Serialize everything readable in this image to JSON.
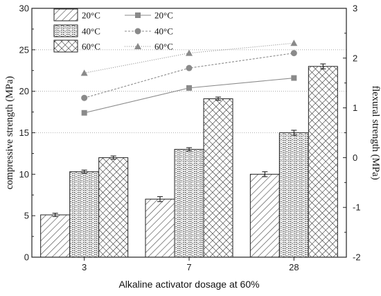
{
  "chart_data": {
    "type": "bar",
    "xlabel": "Alkaline activator dosage at 60%",
    "ylabel_left": "compressive strength (MPa)",
    "ylabel_right": "flexural strength (MPa)",
    "ylim_left": [
      0,
      30
    ],
    "ylim_right": [
      -2,
      3
    ],
    "left_ticks": [
      0,
      5,
      10,
      15,
      20,
      25,
      30
    ],
    "right_ticks": [
      -2,
      -1,
      0,
      1,
      2,
      3
    ],
    "categories": [
      "3",
      "7",
      "28"
    ],
    "bar_series": [
      {
        "name": "20°C",
        "pattern": "diagonal",
        "values": [
          5.1,
          7.0,
          10.0
        ],
        "errors": [
          0.2,
          0.3,
          0.3
        ]
      },
      {
        "name": "40°C",
        "pattern": "wavy",
        "values": [
          10.3,
          13.0,
          15.0
        ],
        "errors": [
          0.2,
          0.2,
          0.3
        ]
      },
      {
        "name": "60°C",
        "pattern": "crosshatch",
        "values": [
          12.0,
          19.1,
          23.0
        ],
        "errors": [
          0.2,
          0.2,
          0.3
        ]
      }
    ],
    "line_series": [
      {
        "name": "20°C",
        "marker": "square",
        "style": "solid",
        "values": [
          0.9,
          1.4,
          1.6
        ]
      },
      {
        "name": "40°C",
        "marker": "circle",
        "style": "dashed",
        "values": [
          1.2,
          1.8,
          2.1
        ]
      },
      {
        "name": "60°C",
        "marker": "triangle",
        "style": "dotted",
        "values": [
          1.7,
          2.1,
          2.3
        ]
      }
    ],
    "reference_lines_left": [
      15,
      20,
      25
    ],
    "legend_position": "top-left"
  }
}
